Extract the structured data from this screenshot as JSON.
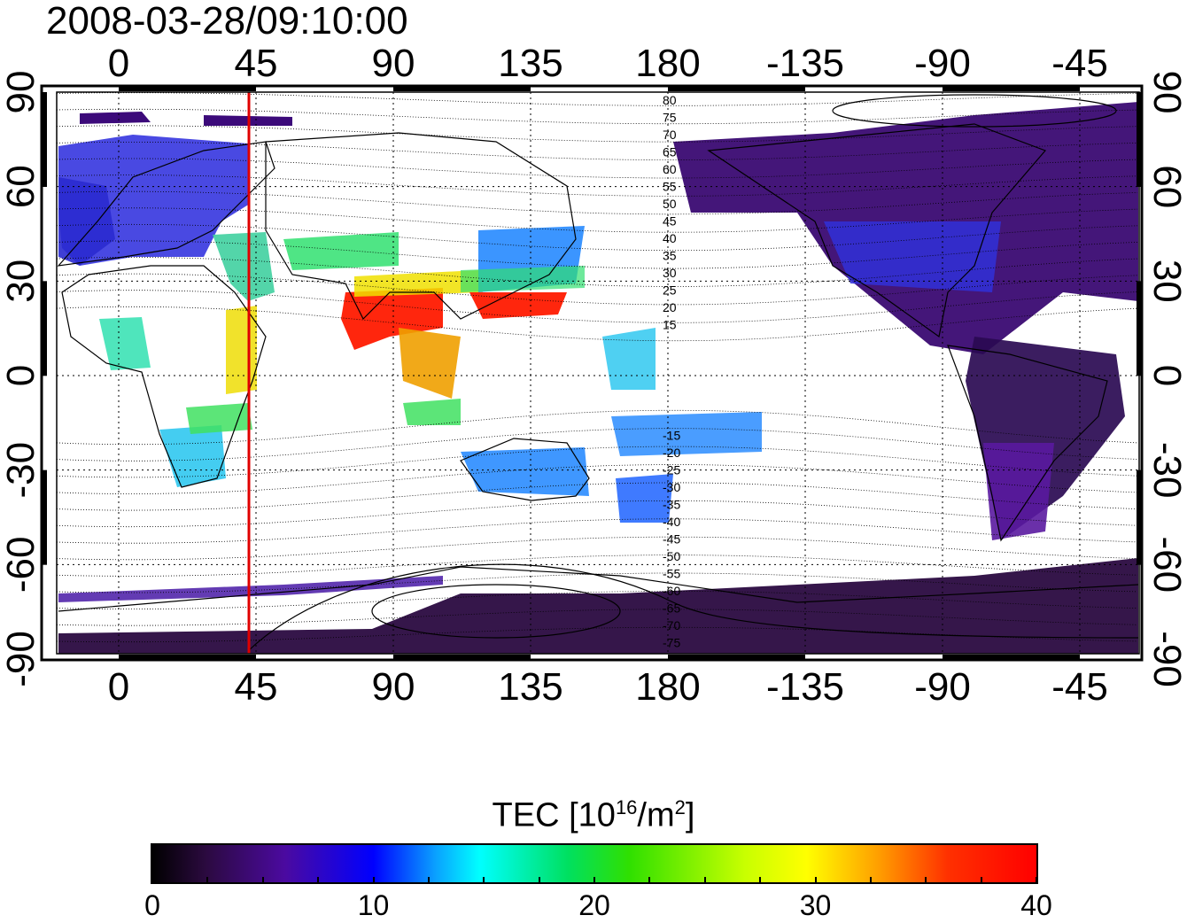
{
  "title": "2008-03-28/09:10:00",
  "map": {
    "top_lon_labels": [
      "0",
      "45",
      "90",
      "135",
      "180",
      "-135",
      "-90",
      "-45"
    ],
    "bottom_lon_labels": [
      "0",
      "45",
      "90",
      "135",
      "180",
      "-135",
      "-90",
      "-45"
    ],
    "left_lat_labels": [
      "90",
      "60",
      "30",
      "0",
      "-30",
      "-60",
      "-90"
    ],
    "right_lat_labels": [
      "90",
      "60",
      "30",
      "0",
      "-30",
      "-60",
      "-90"
    ],
    "magnetic_lat_labels_north": [
      "80",
      "75",
      "70",
      "65",
      "60",
      "55",
      "50",
      "45",
      "40",
      "35",
      "30",
      "25",
      "20",
      "15"
    ],
    "magnetic_lat_labels_south": [
      "-15",
      "-20",
      "-25",
      "-30",
      "-35",
      "-40",
      "-45",
      "-50",
      "-55",
      "-60",
      "-65",
      "-70",
      "-75"
    ],
    "marker_line_color": "#e00000"
  },
  "colorbar": {
    "label_prefix": "TEC  [10",
    "label_sup": "16",
    "label_mid": "/m",
    "label_sup2": "2",
    "label_suffix": "]",
    "tick_labels": [
      "0",
      "10",
      "20",
      "30",
      "40"
    ],
    "min": 0,
    "max": 40
  },
  "tec_regions": [
    {
      "name": "Europe",
      "color": "#3c3ce6"
    },
    {
      "name": "North Africa / Middle East",
      "color": "#30d8a0"
    },
    {
      "name": "India / Southeast Asia",
      "color": "#ff1a00"
    },
    {
      "name": "East Asia / Japan",
      "color": "#2a8cff"
    },
    {
      "name": "Australia",
      "color": "#2a8cff"
    },
    {
      "name": "Americas",
      "color": "#3a0a70"
    },
    {
      "name": "Antarctica",
      "color": "#2a0a40"
    }
  ]
}
